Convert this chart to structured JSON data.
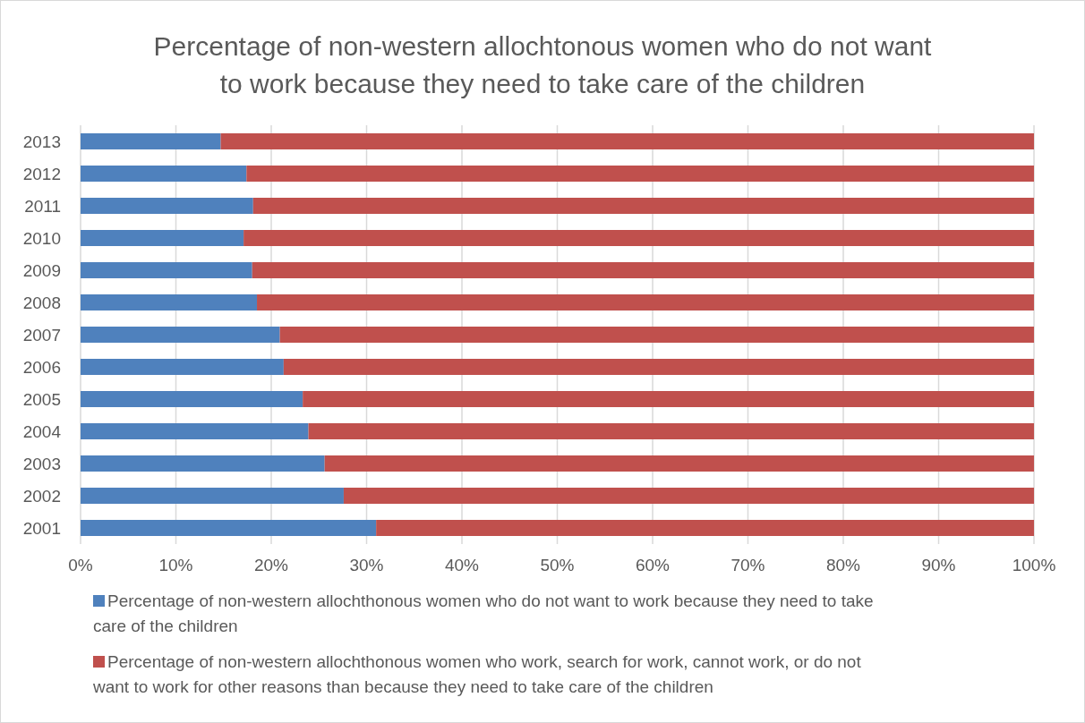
{
  "chart_data": {
    "type": "bar",
    "orientation": "horizontal",
    "stacked": true,
    "title": "Percentage of non-western allochtonous women who do not want to work because they need to take care of the children",
    "categories": [
      "2013",
      "2012",
      "2011",
      "2010",
      "2009",
      "2008",
      "2007",
      "2006",
      "2005",
      "2004",
      "2003",
      "2002",
      "2001"
    ],
    "series": [
      {
        "name": "Percentage of non-western allochthonous women who do not want to work because they need to take care of the children",
        "color": "#4f81bd",
        "values": [
          14.7,
          17.4,
          18.1,
          17.1,
          18.0,
          18.5,
          20.9,
          21.3,
          23.3,
          23.9,
          25.6,
          27.6,
          31.0
        ]
      },
      {
        "name": "Percentage of non-western allochthonous women who work, search for work, cannot work, or do not want to work for other reasons than because they need to take care of the children",
        "color": "#c0504d",
        "values": [
          85.3,
          82.6,
          81.9,
          82.9,
          82.0,
          81.5,
          79.1,
          78.7,
          76.7,
          76.1,
          74.4,
          72.4,
          69.0
        ]
      }
    ],
    "xlim": [
      0,
      100
    ],
    "xticks": [
      {
        "value": 0,
        "label": "0%"
      },
      {
        "value": 10,
        "label": "10%"
      },
      {
        "value": 20,
        "label": "20%"
      },
      {
        "value": 30,
        "label": "30%"
      },
      {
        "value": 40,
        "label": "40%"
      },
      {
        "value": 50,
        "label": "50%"
      },
      {
        "value": 60,
        "label": "60%"
      },
      {
        "value": 70,
        "label": "70%"
      },
      {
        "value": 80,
        "label": "80%"
      },
      {
        "value": 90,
        "label": "90%"
      },
      {
        "value": 100,
        "label": "100%"
      }
    ],
    "grid": "x",
    "legend": "bottom"
  }
}
